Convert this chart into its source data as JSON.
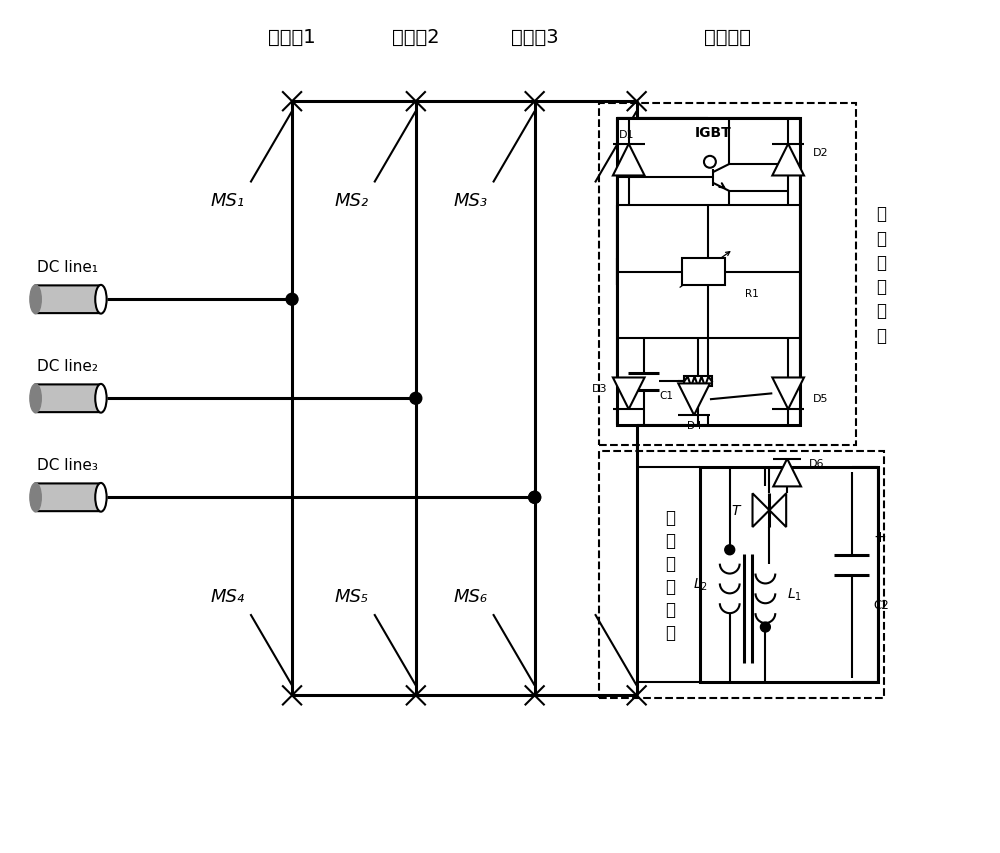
{
  "bg": "#ffffff",
  "fg": "#000000",
  "top_labels": [
    "主支路1",
    "主支路2",
    "主支路3",
    "转移支路"
  ],
  "ms_top": [
    "MS₁",
    "MS₂",
    "MS₃"
  ],
  "ms_bot": [
    "MS₄",
    "MS₅",
    "MS₆"
  ],
  "dc_lines": [
    "DC line₁",
    "DC line₂",
    "DC line₃"
  ],
  "lts_label": "负载转移开关",
  "cnv_label": "耦合负压回路"
}
